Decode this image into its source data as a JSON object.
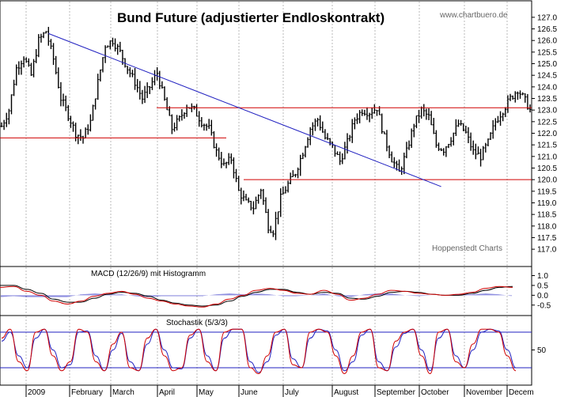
{
  "chart_data": [
    {
      "type": "ohlc",
      "title": "Bund Future (adjustierter Endloskontrakt)",
      "source_top": "www.chartbuero.de",
      "source_bottom": "Hoppenstedt Charts",
      "ylim": [
        116.8,
        127.2
      ],
      "yticks": [
        "127.0",
        "126.5",
        "126.0",
        "125.5",
        "125.0",
        "124.5",
        "124.0",
        "123.5",
        "123.0",
        "122.5",
        "122.0",
        "121.5",
        "121.0",
        "120.5",
        "120.0",
        "119.5",
        "119.0",
        "118.5",
        "118.0",
        "117.5",
        "117.0"
      ],
      "months": [
        "2009",
        "February",
        "March",
        "April",
        "May",
        "June",
        "July",
        "August",
        "September",
        "October",
        "November",
        "Decem"
      ],
      "close_path": [
        [
          0,
          122.3
        ],
        [
          3,
          123.0
        ],
        [
          6,
          124.8
        ],
        [
          9,
          125.3
        ],
        [
          12,
          124.5
        ],
        [
          15,
          126.0
        ],
        [
          18,
          126.4
        ],
        [
          21,
          125.2
        ],
        [
          24,
          123.5
        ],
        [
          27,
          122.8
        ],
        [
          30,
          122.0
        ],
        [
          33,
          121.8
        ],
        [
          36,
          122.5
        ],
        [
          39,
          124.2
        ],
        [
          42,
          125.8
        ],
        [
          45,
          126.0
        ],
        [
          48,
          125.5
        ],
        [
          51,
          124.8
        ],
        [
          54,
          124.2
        ],
        [
          57,
          123.5
        ],
        [
          60,
          124.0
        ],
        [
          63,
          124.6
        ],
        [
          66,
          123.4
        ],
        [
          69,
          122.2
        ],
        [
          72,
          122.6
        ],
        [
          75,
          123.2
        ],
        [
          78,
          123.0
        ],
        [
          81,
          122.5
        ],
        [
          84,
          122.2
        ],
        [
          87,
          121.2
        ],
        [
          90,
          120.6
        ],
        [
          93,
          120.9
        ],
        [
          96,
          119.5
        ],
        [
          99,
          119.0
        ],
        [
          102,
          118.8
        ],
        [
          105,
          119.6
        ],
        [
          108,
          118.0
        ],
        [
          110,
          117.8
        ],
        [
          113,
          119.2
        ],
        [
          116,
          119.8
        ],
        [
          119,
          120.3
        ],
        [
          122,
          121.2
        ],
        [
          125,
          122.2
        ],
        [
          128,
          122.6
        ],
        [
          131,
          121.8
        ],
        [
          134,
          121.4
        ],
        [
          137,
          120.8
        ],
        [
          140,
          121.6
        ],
        [
          143,
          122.6
        ],
        [
          146,
          123.0
        ],
        [
          149,
          122.9
        ],
        [
          152,
          123.1
        ],
        [
          155,
          121.8
        ],
        [
          158,
          120.9
        ],
        [
          161,
          120.3
        ],
        [
          164,
          121.2
        ],
        [
          167,
          122.4
        ],
        [
          170,
          123.0
        ],
        [
          173,
          122.7
        ],
        [
          176,
          121.5
        ],
        [
          179,
          121.3
        ],
        [
          182,
          121.8
        ],
        [
          185,
          122.4
        ],
        [
          188,
          122.0
        ],
        [
          191,
          121.2
        ],
        [
          194,
          121.0
        ],
        [
          197,
          121.6
        ],
        [
          200,
          122.5
        ],
        [
          203,
          123.0
        ],
        [
          206,
          123.5
        ],
        [
          209,
          123.9
        ],
        [
          212,
          123.4
        ],
        [
          214,
          123.0
        ]
      ],
      "horizontal_lines": [
        121.8,
        120.0,
        123.1
      ],
      "trendline": [
        [
          19,
          126.3
        ],
        [
          178,
          119.7
        ]
      ]
    },
    {
      "type": "line",
      "title": "MACD (12/26/9) mit Histogramm",
      "ylim": [
        -0.75,
        1.1
      ],
      "yticks": [
        "1.0",
        "0.5",
        "0.0",
        "-0.5"
      ],
      "series": [
        {
          "values": [
            0.4,
            0.45,
            0.2,
            0.0,
            -0.3,
            -0.45,
            -0.3,
            -0.05,
            0.1,
            0.2,
            0.05,
            -0.15,
            -0.3,
            -0.45,
            -0.55,
            -0.6,
            -0.45,
            -0.2,
            0.0,
            0.25,
            0.35,
            0.25,
            0.1,
            0.05,
            0.25,
            0.05,
            -0.25,
            -0.15,
            0.05,
            0.25,
            0.2,
            0.1,
            0.05,
            0.0,
            0.05,
            0.15,
            0.35,
            0.45,
            0.4
          ]
        },
        {
          "values": [
            0.5,
            0.5,
            0.3,
            0.1,
            -0.2,
            -0.35,
            -0.35,
            -0.15,
            0.05,
            0.15,
            0.1,
            -0.05,
            -0.25,
            -0.4,
            -0.5,
            -0.55,
            -0.5,
            -0.3,
            -0.05,
            0.15,
            0.3,
            0.3,
            0.15,
            0.05,
            0.15,
            0.1,
            -0.15,
            -0.2,
            -0.05,
            0.15,
            0.2,
            0.15,
            0.05,
            0.0,
            0.0,
            0.1,
            0.25,
            0.4,
            0.45
          ]
        }
      ]
    },
    {
      "type": "line",
      "title": "Stochastik (5/3/3)",
      "ylim": [
        0,
        100
      ],
      "yticks": [
        "50"
      ],
      "levels": [
        80,
        20
      ],
      "series": [
        {
          "values": [
            70,
            85,
            30,
            15,
            80,
            85,
            40,
            15,
            30,
            85,
            80,
            30,
            15,
            60,
            80,
            20,
            15,
            70,
            85,
            40,
            15,
            20,
            75,
            85,
            30,
            15,
            80,
            85,
            85,
            20,
            10,
            40,
            80,
            85,
            25,
            20,
            80,
            85,
            80,
            40,
            10,
            40,
            80,
            85,
            20,
            15,
            65,
            80,
            85,
            40,
            10,
            80,
            85,
            30,
            20,
            60,
            85,
            85,
            80,
            40,
            15
          ]
        },
        {
          "values": [
            65,
            80,
            40,
            20,
            70,
            85,
            50,
            20,
            25,
            80,
            82,
            40,
            15,
            50,
            78,
            30,
            15,
            60,
            85,
            50,
            20,
            18,
            70,
            85,
            40,
            15,
            70,
            85,
            85,
            30,
            12,
            30,
            75,
            85,
            35,
            20,
            70,
            85,
            82,
            50,
            15,
            30,
            75,
            85,
            30,
            15,
            55,
            78,
            85,
            50,
            15,
            70,
            85,
            40,
            20,
            50,
            80,
            85,
            82,
            50,
            20
          ]
        }
      ]
    }
  ]
}
